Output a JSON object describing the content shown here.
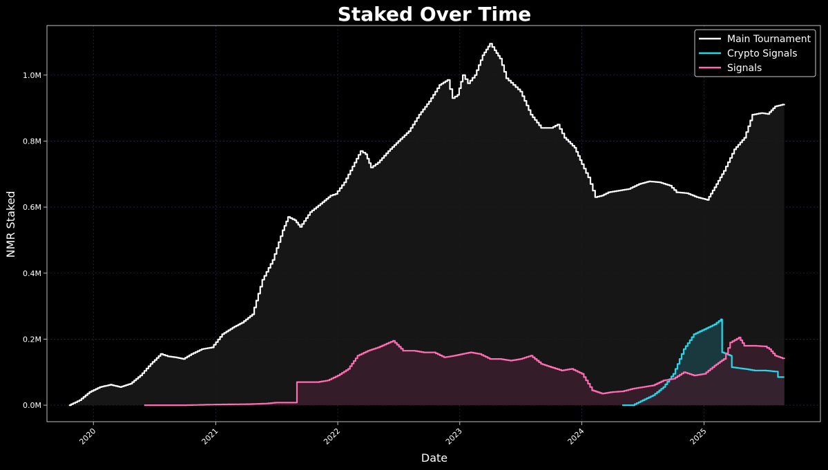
{
  "chart_data": {
    "type": "area",
    "title": "Staked Over Time",
    "xlabel": "Date",
    "ylabel": "NMR Staked",
    "xlim": [
      "2019-08-15",
      "2025-12-15"
    ],
    "ylim": [
      -50000,
      1150000
    ],
    "x_ticks": [
      {
        "date": "2020-01-01",
        "label": "2020"
      },
      {
        "date": "2021-01-01",
        "label": "2021"
      },
      {
        "date": "2022-01-01",
        "label": "2022"
      },
      {
        "date": "2023-01-01",
        "label": "2023"
      },
      {
        "date": "2024-01-01",
        "label": "2024"
      },
      {
        "date": "2025-01-01",
        "label": "2025"
      }
    ],
    "y_ticks": [
      {
        "value": 0,
        "label": "0.0M"
      },
      {
        "value": 200000,
        "label": "0.2M"
      },
      {
        "value": 400000,
        "label": "0.4M"
      },
      {
        "value": 600000,
        "label": "0.6M"
      },
      {
        "value": 800000,
        "label": "0.8M"
      },
      {
        "value": 1000000,
        "label": "1.0M"
      }
    ],
    "grid": true,
    "legend_position": "top-right",
    "series": [
      {
        "name": "Main Tournament",
        "color": "#ffffff",
        "fill_color": "#1a1a1a",
        "points": [
          [
            "2019-10-20",
            0
          ],
          [
            "2019-11-20",
            15000
          ],
          [
            "2019-12-20",
            40000
          ],
          [
            "2020-01-20",
            55000
          ],
          [
            "2020-02-20",
            62000
          ],
          [
            "2020-03-20",
            55000
          ],
          [
            "2020-04-20",
            65000
          ],
          [
            "2020-05-20",
            90000
          ],
          [
            "2020-06-20",
            125000
          ],
          [
            "2020-07-20",
            155000
          ],
          [
            "2020-08-10",
            148000
          ],
          [
            "2020-09-01",
            145000
          ],
          [
            "2020-09-25",
            140000
          ],
          [
            "2020-10-20",
            155000
          ],
          [
            "2020-11-20",
            170000
          ],
          [
            "2020-12-20",
            175000
          ],
          [
            "2021-01-20",
            215000
          ],
          [
            "2021-02-20",
            235000
          ],
          [
            "2021-03-20",
            250000
          ],
          [
            "2021-04-20",
            275000
          ],
          [
            "2021-05-20",
            380000
          ],
          [
            "2021-06-20",
            440000
          ],
          [
            "2021-07-20",
            530000
          ],
          [
            "2021-08-05",
            570000
          ],
          [
            "2021-08-25",
            560000
          ],
          [
            "2021-09-10",
            540000
          ],
          [
            "2021-10-10",
            585000
          ],
          [
            "2021-11-10",
            610000
          ],
          [
            "2021-12-10",
            635000
          ],
          [
            "2021-12-25",
            640000
          ],
          [
            "2022-01-20",
            675000
          ],
          [
            "2022-02-20",
            735000
          ],
          [
            "2022-03-10",
            770000
          ],
          [
            "2022-03-25",
            760000
          ],
          [
            "2022-04-10",
            720000
          ],
          [
            "2022-05-01",
            735000
          ],
          [
            "2022-06-01",
            770000
          ],
          [
            "2022-07-01",
            800000
          ],
          [
            "2022-08-01",
            830000
          ],
          [
            "2022-09-01",
            880000
          ],
          [
            "2022-10-01",
            920000
          ],
          [
            "2022-11-01",
            970000
          ],
          [
            "2022-11-25",
            985000
          ],
          [
            "2022-12-10",
            930000
          ],
          [
            "2022-12-25",
            940000
          ],
          [
            "2023-01-10",
            1000000
          ],
          [
            "2023-01-25",
            975000
          ],
          [
            "2023-02-15",
            1000000
          ],
          [
            "2023-03-10",
            1060000
          ],
          [
            "2023-04-01",
            1095000
          ],
          [
            "2023-04-15",
            1075000
          ],
          [
            "2023-05-01",
            1050000
          ],
          [
            "2023-05-20",
            990000
          ],
          [
            "2023-06-10",
            970000
          ],
          [
            "2023-07-01",
            950000
          ],
          [
            "2023-08-01",
            880000
          ],
          [
            "2023-09-01",
            840000
          ],
          [
            "2023-10-01",
            840000
          ],
          [
            "2023-10-20",
            850000
          ],
          [
            "2023-11-10",
            810000
          ],
          [
            "2023-12-10",
            780000
          ],
          [
            "2024-01-01",
            730000
          ],
          [
            "2024-01-20",
            690000
          ],
          [
            "2024-02-10",
            630000
          ],
          [
            "2024-03-01",
            635000
          ],
          [
            "2024-03-20",
            645000
          ],
          [
            "2024-04-20",
            650000
          ],
          [
            "2024-05-20",
            655000
          ],
          [
            "2024-06-20",
            670000
          ],
          [
            "2024-07-20",
            678000
          ],
          [
            "2024-08-20",
            675000
          ],
          [
            "2024-09-20",
            665000
          ],
          [
            "2024-10-10",
            645000
          ],
          [
            "2024-11-10",
            642000
          ],
          [
            "2024-12-10",
            630000
          ],
          [
            "2025-01-10",
            622000
          ],
          [
            "2025-02-01",
            660000
          ],
          [
            "2025-03-01",
            710000
          ],
          [
            "2025-04-01",
            775000
          ],
          [
            "2025-05-01",
            810000
          ],
          [
            "2025-05-25",
            880000
          ],
          [
            "2025-06-20",
            885000
          ],
          [
            "2025-07-10",
            882000
          ],
          [
            "2025-08-01",
            905000
          ],
          [
            "2025-08-29",
            912000
          ]
        ]
      },
      {
        "name": "Crypto Signals",
        "color": "#25d9e8",
        "fill_color": "#1b3f47",
        "points": [
          [
            "2024-05-01",
            0
          ],
          [
            "2024-06-01",
            0
          ],
          [
            "2024-07-01",
            15000
          ],
          [
            "2024-08-01",
            30000
          ],
          [
            "2024-09-01",
            55000
          ],
          [
            "2024-10-01",
            95000
          ],
          [
            "2024-11-01",
            170000
          ],
          [
            "2024-12-01",
            215000
          ],
          [
            "2025-01-01",
            230000
          ],
          [
            "2025-02-01",
            245000
          ],
          [
            "2025-02-20",
            260000
          ],
          [
            "2025-02-24",
            160000
          ],
          [
            "2025-03-20",
            150000
          ],
          [
            "2025-03-25",
            115000
          ],
          [
            "2025-05-01",
            110000
          ],
          [
            "2025-06-01",
            105000
          ],
          [
            "2025-07-01",
            105000
          ],
          [
            "2025-08-01",
            102000
          ],
          [
            "2025-08-10",
            85000
          ],
          [
            "2025-08-29",
            85000
          ]
        ]
      },
      {
        "name": "Signals",
        "color": "#ff6eb4",
        "fill_color": "#3a1f2b",
        "points": [
          [
            "2020-06-01",
            0
          ],
          [
            "2020-10-01",
            0
          ],
          [
            "2021-01-01",
            2000
          ],
          [
            "2021-04-01",
            3000
          ],
          [
            "2021-06-01",
            5000
          ],
          [
            "2021-07-01",
            8000
          ],
          [
            "2021-08-25",
            8000
          ],
          [
            "2021-09-01",
            70000
          ],
          [
            "2021-11-01",
            70000
          ],
          [
            "2021-12-01",
            75000
          ],
          [
            "2022-01-01",
            90000
          ],
          [
            "2022-02-01",
            110000
          ],
          [
            "2022-03-01",
            150000
          ],
          [
            "2022-04-01",
            165000
          ],
          [
            "2022-05-01",
            175000
          ],
          [
            "2022-06-15",
            195000
          ],
          [
            "2022-07-15",
            165000
          ],
          [
            "2022-08-15",
            165000
          ],
          [
            "2022-09-15",
            160000
          ],
          [
            "2022-10-15",
            160000
          ],
          [
            "2022-11-15",
            145000
          ],
          [
            "2022-12-15",
            150000
          ],
          [
            "2023-02-01",
            160000
          ],
          [
            "2023-03-01",
            155000
          ],
          [
            "2023-04-01",
            140000
          ],
          [
            "2023-05-01",
            140000
          ],
          [
            "2023-06-01",
            135000
          ],
          [
            "2023-07-01",
            140000
          ],
          [
            "2023-08-01",
            150000
          ],
          [
            "2023-09-01",
            125000
          ],
          [
            "2023-10-01",
            115000
          ],
          [
            "2023-11-01",
            105000
          ],
          [
            "2023-12-01",
            110000
          ],
          [
            "2024-01-01",
            95000
          ],
          [
            "2024-02-01",
            45000
          ],
          [
            "2024-03-01",
            35000
          ],
          [
            "2024-04-01",
            40000
          ],
          [
            "2024-05-01",
            42000
          ],
          [
            "2024-06-01",
            50000
          ],
          [
            "2024-07-01",
            55000
          ],
          [
            "2024-08-01",
            60000
          ],
          [
            "2024-09-01",
            75000
          ],
          [
            "2024-10-01",
            80000
          ],
          [
            "2024-11-01",
            100000
          ],
          [
            "2024-12-01",
            90000
          ],
          [
            "2025-01-01",
            95000
          ],
          [
            "2025-02-01",
            120000
          ],
          [
            "2025-03-01",
            140000
          ],
          [
            "2025-03-20",
            190000
          ],
          [
            "2025-04-15",
            205000
          ],
          [
            "2025-05-01",
            180000
          ],
          [
            "2025-06-01",
            180000
          ],
          [
            "2025-07-01",
            178000
          ],
          [
            "2025-07-15",
            170000
          ],
          [
            "2025-08-01",
            150000
          ],
          [
            "2025-08-29",
            140000
          ]
        ]
      }
    ]
  }
}
